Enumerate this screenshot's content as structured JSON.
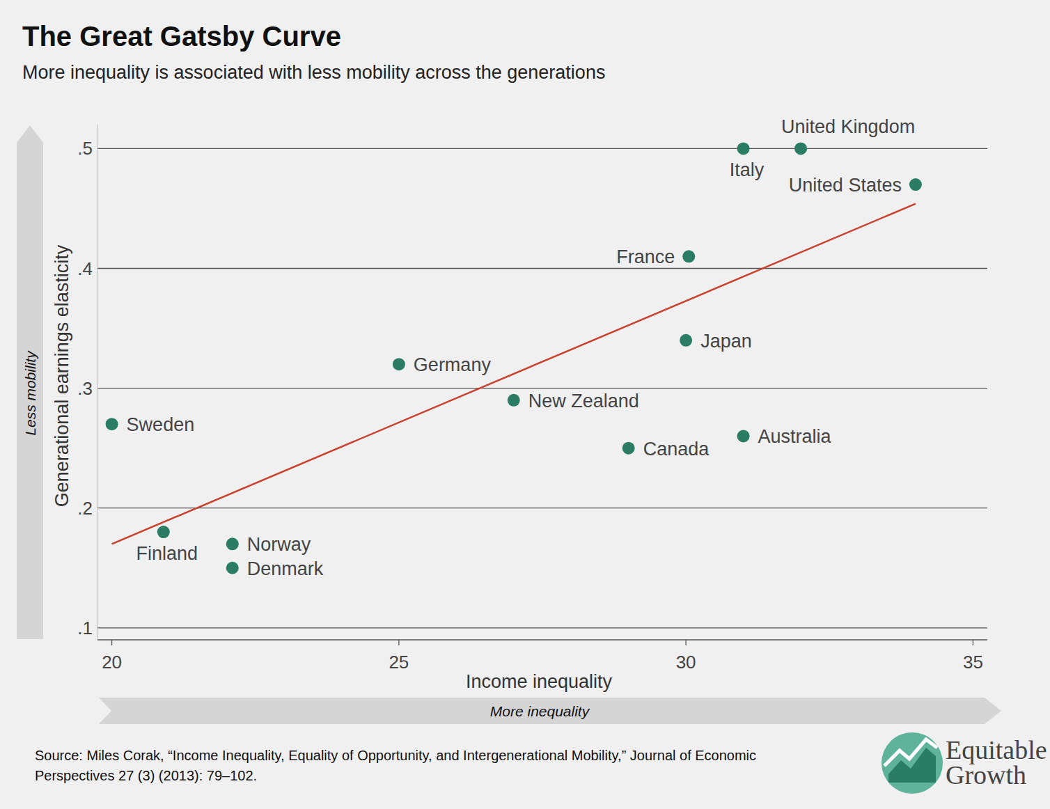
{
  "chart_data": {
    "type": "scatter",
    "title": "The Great Gatsby Curve",
    "subtitle": "More inequality is associated with less mobility across the generations",
    "x_label": "Income inequality",
    "y_label": "Generational earnings elasticity",
    "x_arrow_label": "More inequality",
    "y_arrow_label": "Less mobility",
    "categories": [
      "Sweden",
      "Finland",
      "Norway",
      "Denmark",
      "Germany",
      "New Zealand",
      "Canada",
      "Japan",
      "France",
      "Australia",
      "Italy",
      "United Kingdom",
      "United States"
    ],
    "x": [
      20.0,
      20.9,
      22.1,
      22.1,
      25.0,
      27.0,
      29.0,
      30.0,
      30.05,
      31.0,
      31.0,
      32.0,
      34.0
    ],
    "values": [
      0.27,
      0.18,
      0.17,
      0.15,
      0.32,
      0.29,
      0.25,
      0.34,
      0.41,
      0.26,
      0.5,
      0.5,
      0.47
    ],
    "color": "#2a7d63",
    "marker": "circle",
    "trend_line": {
      "x": [
        20,
        34
      ],
      "values": [
        0.17,
        0.454
      ],
      "color": "#c9402c"
    },
    "xlim": [
      19.75,
      35.25
    ],
    "ylim": [
      0.09,
      0.52
    ],
    "xticks": [
      20,
      25,
      30,
      35
    ],
    "yticks": [
      {
        "value": 0.1,
        "label": ".1"
      },
      {
        "value": 0.2,
        "label": ".2"
      },
      {
        "value": 0.3,
        "label": ".3"
      },
      {
        "value": 0.4,
        "label": ".4"
      },
      {
        "value": 0.5,
        "label": ".5"
      }
    ],
    "grid": true,
    "source": [
      "Source: Miles Corak, “Income Inequality, Equality of Opportunity, and Intergenerational Mobility,” Journal of Economic",
      "Perspectives 27 (3) (2013): 79–102."
    ],
    "logo": [
      "Equitable",
      "Growth"
    ]
  }
}
